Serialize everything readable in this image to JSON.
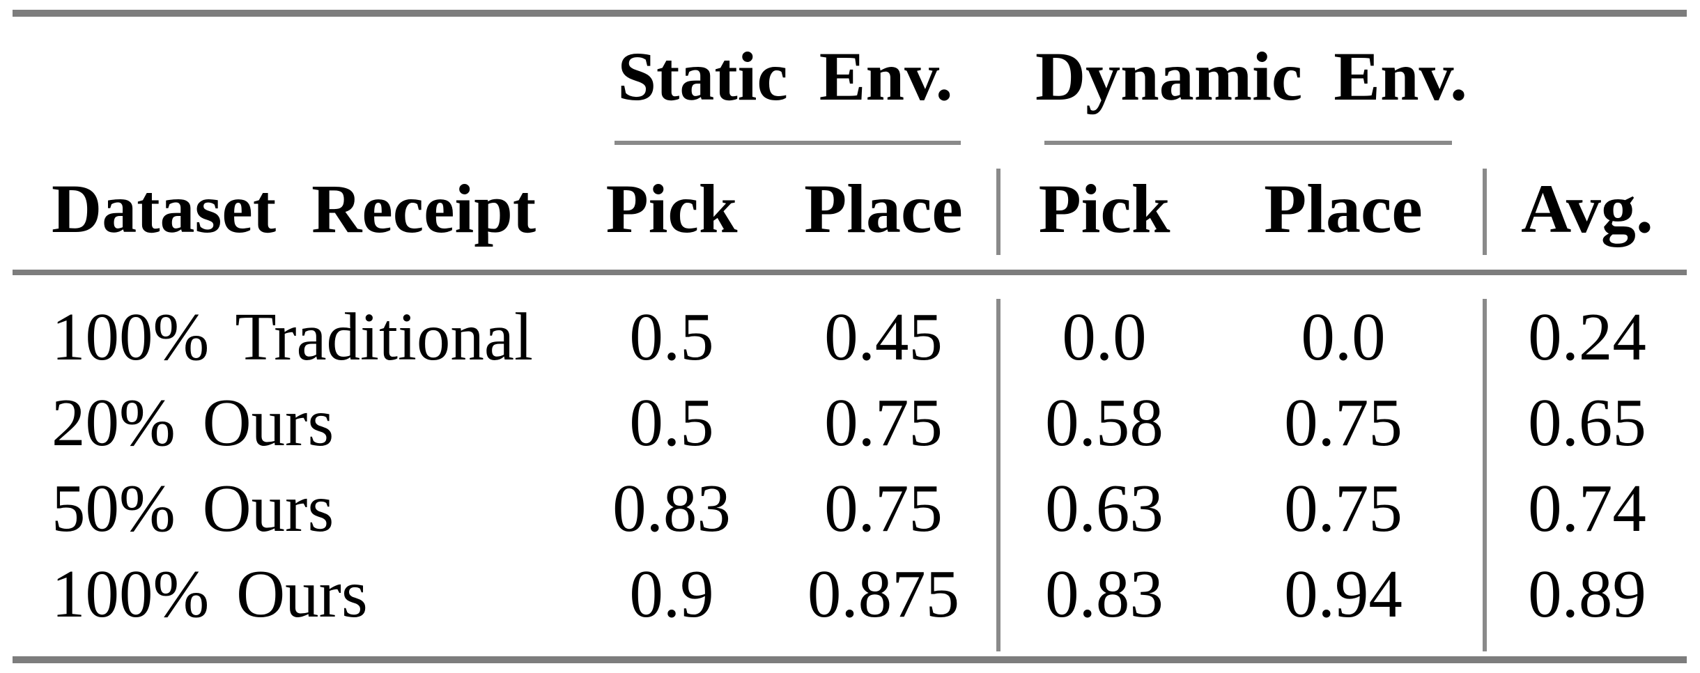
{
  "figure": {
    "type": "paper-results-table",
    "colors": {
      "thick_rule": "#7d7d7d",
      "thin_rule": "#8a8a8a",
      "text": "#000000",
      "background": "#ffffff"
    }
  },
  "table": {
    "row_label_header": "Dataset Receipt",
    "group_headers": [
      {
        "label": "Static Env.",
        "columns": [
          "Pick",
          "Place"
        ]
      },
      {
        "label": "Dynamic Env.",
        "columns": [
          "Pick",
          "Place"
        ]
      }
    ],
    "avg_header": "Avg.",
    "rows": [
      {
        "label": "100% Traditional",
        "static": {
          "pick": "0.5",
          "place": "0.45"
        },
        "dynamic": {
          "pick": "0.0",
          "place": "0.0"
        },
        "avg": "0.24"
      },
      {
        "label": "20% Ours",
        "static": {
          "pick": "0.5",
          "place": "0.75"
        },
        "dynamic": {
          "pick": "0.58",
          "place": "0.75"
        },
        "avg": "0.65"
      },
      {
        "label": "50% Ours",
        "static": {
          "pick": "0.83",
          "place": "0.75"
        },
        "dynamic": {
          "pick": "0.63",
          "place": "0.75"
        },
        "avg": "0.74"
      },
      {
        "label": "100% Ours",
        "static": {
          "pick": "0.9",
          "place": "0.875"
        },
        "dynamic": {
          "pick": "0.83",
          "place": "0.94"
        },
        "avg": "0.89"
      }
    ]
  },
  "chart_data": {
    "type": "table",
    "title": "",
    "column_groups": [
      "Static Env.",
      "Dynamic Env."
    ],
    "columns": [
      "Dataset Receipt",
      "Static Env. Pick",
      "Static Env. Place",
      "Dynamic Env. Pick",
      "Dynamic Env. Place",
      "Avg."
    ],
    "rows": [
      [
        "100% Traditional",
        0.5,
        0.45,
        0.0,
        0.0,
        0.24
      ],
      [
        "20% Ours",
        0.5,
        0.75,
        0.58,
        0.75,
        0.65
      ],
      [
        "50% Ours",
        0.83,
        0.75,
        0.63,
        0.75,
        0.74
      ],
      [
        "100% Ours",
        0.9,
        0.875,
        0.83,
        0.94,
        0.89
      ]
    ]
  }
}
